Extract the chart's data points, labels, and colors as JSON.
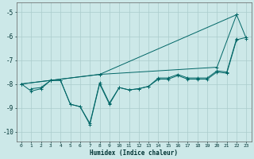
{
  "xlabel": "Humidex (Indice chaleur)",
  "xlim": [
    -0.5,
    23.5
  ],
  "ylim": [
    -10.4,
    -4.6
  ],
  "yticks": [
    -10,
    -9,
    -8,
    -7,
    -6,
    -5
  ],
  "xticks": [
    0,
    1,
    2,
    3,
    4,
    5,
    6,
    7,
    8,
    9,
    10,
    11,
    12,
    13,
    14,
    15,
    16,
    17,
    18,
    19,
    20,
    21,
    22,
    23
  ],
  "bg_color": "#cce8e8",
  "grid_color": "#aacccc",
  "line_color": "#006666",
  "series": [
    [
      0,
      -8.0,
      1,
      -8.3,
      2,
      -8.2,
      3,
      -7.85,
      4,
      -7.85,
      5,
      -8.85,
      6,
      -8.95,
      7,
      -9.65,
      8,
      -7.95,
      9,
      -8.8,
      10,
      -8.15,
      11,
      -8.25,
      12,
      -8.2,
      13,
      -8.1,
      14,
      -7.8,
      15,
      -7.8,
      16,
      -7.65,
      17,
      -7.8,
      18,
      -7.8,
      19,
      -7.8,
      20,
      -7.5,
      21,
      -7.55,
      22,
      -6.15,
      23,
      -6.05
    ],
    [
      0,
      -8.0,
      3,
      -7.85,
      8,
      -7.6,
      20,
      -7.3,
      22,
      -5.1
    ],
    [
      0,
      -8.0,
      3,
      -7.85,
      8,
      -7.6,
      22,
      -5.1,
      23,
      -6.1
    ],
    [
      1,
      -8.2,
      2,
      -8.15,
      3,
      -7.85,
      4,
      -7.85,
      5,
      -8.85,
      6,
      -8.95,
      7,
      -9.7,
      8,
      -8.0,
      9,
      -8.85,
      10,
      -8.15,
      11,
      -8.25,
      12,
      -8.2,
      13,
      -8.1,
      14,
      -7.75,
      15,
      -7.75,
      16,
      -7.6,
      17,
      -7.75,
      18,
      -7.75,
      19,
      -7.75,
      20,
      -7.45,
      21,
      -7.5,
      22,
      -6.1
    ]
  ]
}
